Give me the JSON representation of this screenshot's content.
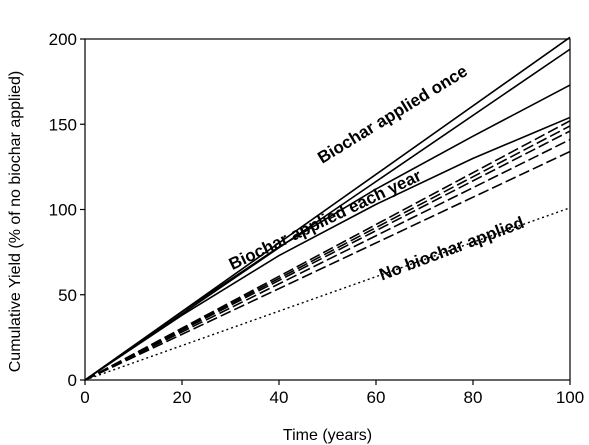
{
  "chart_data": {
    "type": "line",
    "xlabel": "Time (years)",
    "ylabel": "Cumulative Yield (% of no biochar applied)",
    "xlim": [
      0,
      100
    ],
    "ylim": [
      0,
      200
    ],
    "xticks": [
      0,
      20,
      40,
      60,
      80,
      100
    ],
    "yticks": [
      0,
      50,
      100,
      150,
      200
    ],
    "grid": false,
    "legend": "none",
    "annotations": [
      {
        "text": "Biochar applied once",
        "x": 64,
        "y": 153
      },
      {
        "text": "Biochar applied each year",
        "x": 50,
        "y": 91
      },
      {
        "text": "No biochar applied",
        "x": 76,
        "y": 74
      }
    ],
    "series": [
      {
        "group": "Biochar applied once",
        "style": "solid",
        "x": [
          0,
          100
        ],
        "y": [
          0,
          201
        ]
      },
      {
        "group": "Biochar applied once",
        "style": "solid",
        "x": [
          0,
          100
        ],
        "y": [
          0,
          194
        ]
      },
      {
        "group": "Biochar applied once",
        "style": "solid",
        "x": [
          0,
          20,
          40,
          60,
          80,
          100
        ],
        "y": [
          0,
          40,
          78,
          112,
          143,
          173
        ]
      },
      {
        "group": "Biochar applied once",
        "style": "solid",
        "x": [
          0,
          20,
          40,
          60,
          80,
          100
        ],
        "y": [
          0,
          38,
          73,
          103,
          130,
          154
        ]
      },
      {
        "group": "Biochar applied each year",
        "style": "dashed",
        "x": [
          0,
          100
        ],
        "y": [
          0,
          152
        ]
      },
      {
        "group": "Biochar applied each year",
        "style": "dashed",
        "x": [
          0,
          100
        ],
        "y": [
          0,
          149
        ]
      },
      {
        "group": "Biochar applied each year",
        "style": "dashed",
        "x": [
          0,
          100
        ],
        "y": [
          0,
          146
        ]
      },
      {
        "group": "Biochar applied each year",
        "style": "dashed",
        "x": [
          0,
          100
        ],
        "y": [
          0,
          141
        ]
      },
      {
        "group": "Biochar applied each year",
        "style": "dashed",
        "x": [
          0,
          100
        ],
        "y": [
          0,
          134
        ]
      },
      {
        "group": "No biochar applied",
        "style": "dotted",
        "x": [
          0,
          100
        ],
        "y": [
          0,
          101
        ]
      }
    ]
  }
}
